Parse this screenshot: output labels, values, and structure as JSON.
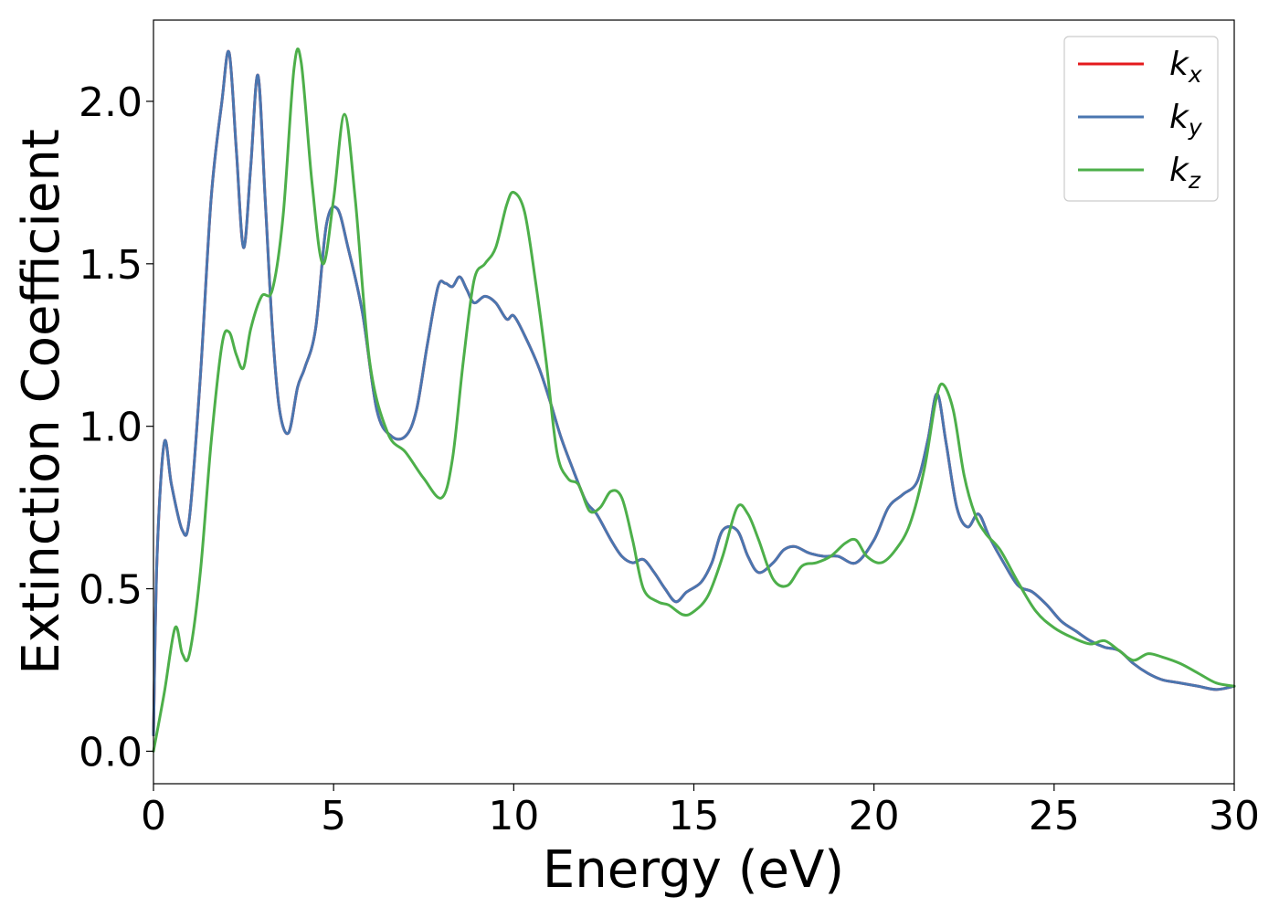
{
  "chart_data": {
    "type": "line",
    "xlabel": "Energy (eV)",
    "ylabel": "Extinction Coefficient",
    "xlim": [
      0,
      30
    ],
    "ylim": [
      -0.1,
      2.25
    ],
    "xticks": [
      0,
      5,
      10,
      15,
      20,
      25,
      30
    ],
    "xtick_labels": [
      "0",
      "5",
      "10",
      "15",
      "20",
      "25",
      "30"
    ],
    "yticks": [
      0.0,
      0.5,
      1.0,
      1.5,
      2.0
    ],
    "ytick_labels": [
      "0.0",
      "0.5",
      "1.0",
      "1.5",
      "2.0"
    ],
    "grid": false,
    "legend_position": "top-right",
    "series": [
      {
        "name": "k_x",
        "label_base": "k",
        "label_sub": "x",
        "color": "#e41a1c",
        "x": [
          0,
          0.1,
          0.3,
          0.5,
          0.8,
          1.0,
          1.3,
          1.6,
          1.9,
          2.1,
          2.3,
          2.5,
          2.7,
          2.9,
          3.1,
          3.3,
          3.5,
          3.75,
          4.0,
          4.2,
          4.5,
          4.8,
          5.1,
          5.4,
          5.8,
          6.2,
          6.6,
          7.0,
          7.3,
          7.6,
          7.9,
          8.1,
          8.3,
          8.5,
          8.7,
          8.9,
          9.2,
          9.5,
          9.8,
          10.0,
          10.3,
          10.7,
          11.0,
          11.3,
          11.6,
          12.0,
          12.3,
          12.7,
          13.0,
          13.3,
          13.6,
          13.9,
          14.2,
          14.5,
          14.8,
          15.2,
          15.5,
          15.8,
          16.2,
          16.5,
          16.8,
          17.2,
          17.5,
          17.8,
          18.2,
          18.6,
          19.0,
          19.5,
          20.0,
          20.4,
          20.8,
          21.2,
          21.5,
          21.75,
          22.0,
          22.3,
          22.6,
          22.9,
          23.2,
          23.6,
          24.0,
          24.4,
          24.8,
          25.2,
          25.6,
          26.0,
          26.4,
          26.8,
          27.2,
          27.6,
          28.0,
          28.5,
          29.0,
          29.5,
          30.0
        ],
        "y": [
          0.05,
          0.6,
          0.95,
          0.82,
          0.68,
          0.72,
          1.15,
          1.7,
          2.0,
          2.15,
          1.85,
          1.55,
          1.8,
          2.08,
          1.7,
          1.3,
          1.05,
          0.98,
          1.12,
          1.18,
          1.3,
          1.62,
          1.67,
          1.55,
          1.35,
          1.05,
          0.97,
          0.97,
          1.05,
          1.25,
          1.43,
          1.44,
          1.43,
          1.46,
          1.42,
          1.38,
          1.4,
          1.38,
          1.33,
          1.34,
          1.28,
          1.18,
          1.08,
          0.97,
          0.88,
          0.77,
          0.73,
          0.65,
          0.6,
          0.58,
          0.59,
          0.55,
          0.5,
          0.46,
          0.49,
          0.52,
          0.58,
          0.68,
          0.68,
          0.6,
          0.55,
          0.58,
          0.62,
          0.63,
          0.61,
          0.6,
          0.6,
          0.58,
          0.65,
          0.75,
          0.79,
          0.83,
          0.96,
          1.1,
          0.95,
          0.75,
          0.69,
          0.73,
          0.66,
          0.58,
          0.51,
          0.49,
          0.45,
          0.4,
          0.37,
          0.34,
          0.32,
          0.31,
          0.27,
          0.24,
          0.22,
          0.21,
          0.2,
          0.19,
          0.2
        ]
      },
      {
        "name": "k_y",
        "label_base": "k",
        "label_sub": "y",
        "color": "#4a76b0",
        "x": [
          0,
          0.1,
          0.3,
          0.5,
          0.8,
          1.0,
          1.3,
          1.6,
          1.9,
          2.1,
          2.3,
          2.5,
          2.7,
          2.9,
          3.1,
          3.3,
          3.5,
          3.75,
          4.0,
          4.2,
          4.5,
          4.8,
          5.1,
          5.4,
          5.8,
          6.2,
          6.6,
          7.0,
          7.3,
          7.6,
          7.9,
          8.1,
          8.3,
          8.5,
          8.7,
          8.9,
          9.2,
          9.5,
          9.8,
          10.0,
          10.3,
          10.7,
          11.0,
          11.3,
          11.6,
          12.0,
          12.3,
          12.7,
          13.0,
          13.3,
          13.6,
          13.9,
          14.2,
          14.5,
          14.8,
          15.2,
          15.5,
          15.8,
          16.2,
          16.5,
          16.8,
          17.2,
          17.5,
          17.8,
          18.2,
          18.6,
          19.0,
          19.5,
          20.0,
          20.4,
          20.8,
          21.2,
          21.5,
          21.75,
          22.0,
          22.3,
          22.6,
          22.9,
          23.2,
          23.6,
          24.0,
          24.4,
          24.8,
          25.2,
          25.6,
          26.0,
          26.4,
          26.8,
          27.2,
          27.6,
          28.0,
          28.5,
          29.0,
          29.5,
          30.0
        ],
        "y": [
          0.05,
          0.6,
          0.95,
          0.82,
          0.68,
          0.72,
          1.15,
          1.7,
          2.0,
          2.15,
          1.85,
          1.55,
          1.8,
          2.08,
          1.7,
          1.3,
          1.05,
          0.98,
          1.12,
          1.18,
          1.3,
          1.62,
          1.67,
          1.55,
          1.35,
          1.05,
          0.97,
          0.97,
          1.05,
          1.25,
          1.43,
          1.44,
          1.43,
          1.46,
          1.42,
          1.38,
          1.4,
          1.38,
          1.33,
          1.34,
          1.28,
          1.18,
          1.08,
          0.97,
          0.88,
          0.77,
          0.73,
          0.65,
          0.6,
          0.58,
          0.59,
          0.55,
          0.5,
          0.46,
          0.49,
          0.52,
          0.58,
          0.68,
          0.68,
          0.6,
          0.55,
          0.58,
          0.62,
          0.63,
          0.61,
          0.6,
          0.6,
          0.58,
          0.65,
          0.75,
          0.79,
          0.83,
          0.96,
          1.1,
          0.95,
          0.75,
          0.69,
          0.73,
          0.66,
          0.58,
          0.51,
          0.49,
          0.45,
          0.4,
          0.37,
          0.34,
          0.32,
          0.31,
          0.27,
          0.24,
          0.22,
          0.21,
          0.2,
          0.19,
          0.2
        ]
      },
      {
        "name": "k_z",
        "label_base": "k",
        "label_sub": "z",
        "color": "#4daf4a",
        "x": [
          0,
          0.3,
          0.6,
          0.8,
          1.0,
          1.3,
          1.6,
          1.9,
          2.1,
          2.3,
          2.5,
          2.7,
          3.0,
          3.3,
          3.6,
          3.9,
          4.1,
          4.4,
          4.7,
          5.0,
          5.3,
          5.6,
          6.0,
          6.5,
          7.0,
          7.5,
          8.0,
          8.3,
          8.6,
          8.9,
          9.2,
          9.5,
          9.8,
          10.0,
          10.3,
          10.6,
          10.9,
          11.2,
          11.5,
          11.8,
          12.1,
          12.4,
          12.7,
          13.0,
          13.3,
          13.6,
          14.0,
          14.3,
          14.7,
          15.0,
          15.4,
          15.8,
          16.2,
          16.5,
          16.8,
          17.2,
          17.6,
          18.0,
          18.4,
          18.8,
          19.2,
          19.5,
          19.8,
          20.2,
          20.6,
          21.0,
          21.4,
          21.7,
          21.9,
          22.2,
          22.5,
          22.8,
          23.1,
          23.5,
          24.0,
          24.5,
          25.0,
          25.5,
          26.0,
          26.4,
          26.8,
          27.2,
          27.6,
          28.0,
          28.5,
          29.0,
          29.5,
          30.0
        ],
        "y": [
          0.0,
          0.18,
          0.38,
          0.3,
          0.3,
          0.55,
          0.95,
          1.25,
          1.29,
          1.22,
          1.18,
          1.3,
          1.4,
          1.42,
          1.65,
          2.1,
          2.12,
          1.75,
          1.5,
          1.7,
          1.96,
          1.7,
          1.2,
          0.98,
          0.92,
          0.84,
          0.78,
          0.9,
          1.2,
          1.45,
          1.5,
          1.55,
          1.68,
          1.72,
          1.66,
          1.45,
          1.2,
          0.92,
          0.84,
          0.82,
          0.74,
          0.75,
          0.8,
          0.78,
          0.65,
          0.5,
          0.46,
          0.45,
          0.42,
          0.43,
          0.48,
          0.6,
          0.75,
          0.73,
          0.65,
          0.53,
          0.51,
          0.57,
          0.58,
          0.6,
          0.64,
          0.65,
          0.6,
          0.58,
          0.62,
          0.7,
          0.87,
          1.07,
          1.13,
          1.05,
          0.85,
          0.73,
          0.67,
          0.62,
          0.52,
          0.43,
          0.38,
          0.35,
          0.33,
          0.34,
          0.31,
          0.28,
          0.3,
          0.29,
          0.27,
          0.24,
          0.21,
          0.2
        ]
      }
    ]
  }
}
